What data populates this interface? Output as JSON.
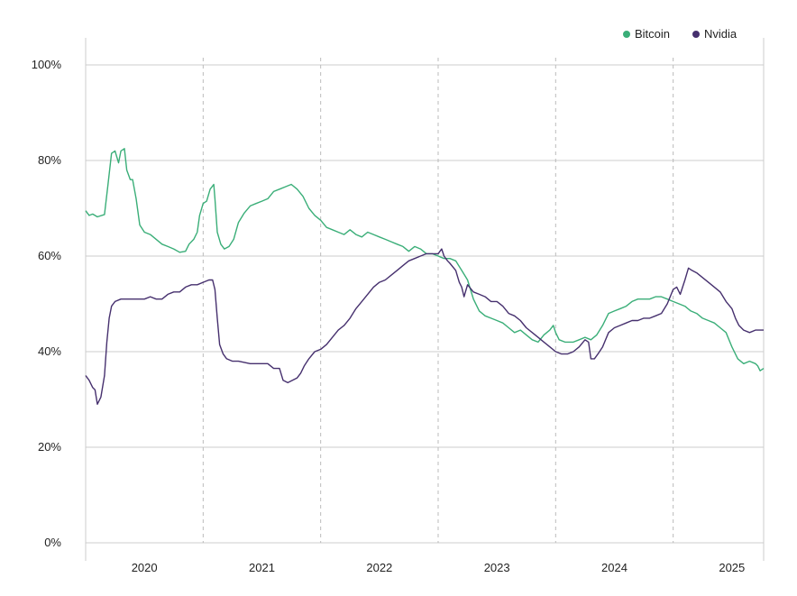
{
  "colors": {
    "bitcoin": "#3aae78",
    "nvidia": "#46306e",
    "grid": "#cccccc",
    "divider": "#bbbbbb"
  },
  "legend": {
    "position": "top-right"
  },
  "chart_data": {
    "type": "line",
    "title": "",
    "xlabel": "",
    "ylabel": "",
    "xlim": [
      2019.5,
      2025.27
    ],
    "ylim": [
      0,
      100
    ],
    "x_ticks": [
      {
        "label": "2020",
        "pos": 2020.0
      },
      {
        "label": "2021",
        "pos": 2021.0
      },
      {
        "label": "2022",
        "pos": 2022.0
      },
      {
        "label": "2023",
        "pos": 2023.0
      },
      {
        "label": "2024",
        "pos": 2024.0
      },
      {
        "label": "2025",
        "pos": 2025.0
      }
    ],
    "year_dividers": [
      2020.5,
      2021.5,
      2022.5,
      2023.5,
      2024.5
    ],
    "y_ticks": [
      {
        "label": "0%",
        "value": 0
      },
      {
        "label": "20%",
        "value": 20
      },
      {
        "label": "40%",
        "value": 40
      },
      {
        "label": "60%",
        "value": 60
      },
      {
        "label": "80%",
        "value": 80
      },
      {
        "label": "100%",
        "value": 100
      }
    ],
    "grid": true,
    "series": [
      {
        "name": "Bitcoin",
        "color": "#3aae78",
        "points": [
          [
            2019.5,
            69.5
          ],
          [
            2019.53,
            68.5
          ],
          [
            2019.56,
            68.8
          ],
          [
            2019.6,
            68.2
          ],
          [
            2019.66,
            68.7
          ],
          [
            2019.69,
            75.0
          ],
          [
            2019.72,
            81.5
          ],
          [
            2019.75,
            82.0
          ],
          [
            2019.78,
            79.5
          ],
          [
            2019.8,
            82.0
          ],
          [
            2019.83,
            82.5
          ],
          [
            2019.85,
            78.0
          ],
          [
            2019.88,
            76.0
          ],
          [
            2019.9,
            76.0
          ],
          [
            2019.93,
            72.0
          ],
          [
            2019.96,
            66.5
          ],
          [
            2020.0,
            65.0
          ],
          [
            2020.05,
            64.5
          ],
          [
            2020.1,
            63.5
          ],
          [
            2020.15,
            62.5
          ],
          [
            2020.2,
            62.0
          ],
          [
            2020.25,
            61.5
          ],
          [
            2020.3,
            60.8
          ],
          [
            2020.35,
            61.0
          ],
          [
            2020.38,
            62.5
          ],
          [
            2020.42,
            63.5
          ],
          [
            2020.45,
            65.0
          ],
          [
            2020.47,
            68.5
          ],
          [
            2020.5,
            71.0
          ],
          [
            2020.53,
            71.5
          ],
          [
            2020.56,
            74.0
          ],
          [
            2020.59,
            75.0
          ],
          [
            2020.6,
            72.0
          ],
          [
            2020.62,
            65.0
          ],
          [
            2020.65,
            62.5
          ],
          [
            2020.68,
            61.5
          ],
          [
            2020.72,
            62.0
          ],
          [
            2020.76,
            63.5
          ],
          [
            2020.8,
            67.0
          ],
          [
            2020.85,
            69.0
          ],
          [
            2020.9,
            70.5
          ],
          [
            2020.95,
            71.0
          ],
          [
            2021.0,
            71.5
          ],
          [
            2021.05,
            72.0
          ],
          [
            2021.1,
            73.5
          ],
          [
            2021.15,
            74.0
          ],
          [
            2021.2,
            74.5
          ],
          [
            2021.25,
            75.0
          ],
          [
            2021.3,
            74.0
          ],
          [
            2021.35,
            72.5
          ],
          [
            2021.4,
            70.0
          ],
          [
            2021.45,
            68.5
          ],
          [
            2021.5,
            67.5
          ],
          [
            2021.55,
            66.0
          ],
          [
            2021.6,
            65.5
          ],
          [
            2021.65,
            65.0
          ],
          [
            2021.7,
            64.5
          ],
          [
            2021.75,
            65.5
          ],
          [
            2021.8,
            64.5
          ],
          [
            2021.85,
            64.0
          ],
          [
            2021.9,
            65.0
          ],
          [
            2021.95,
            64.5
          ],
          [
            2022.0,
            64.0
          ],
          [
            2022.05,
            63.5
          ],
          [
            2022.1,
            63.0
          ],
          [
            2022.15,
            62.5
          ],
          [
            2022.2,
            62.0
          ],
          [
            2022.25,
            61.0
          ],
          [
            2022.3,
            62.0
          ],
          [
            2022.35,
            61.5
          ],
          [
            2022.4,
            60.5
          ],
          [
            2022.45,
            60.5
          ],
          [
            2022.5,
            60.0
          ],
          [
            2022.55,
            59.5
          ],
          [
            2022.6,
            59.5
          ],
          [
            2022.65,
            59.0
          ],
          [
            2022.7,
            57.0
          ],
          [
            2022.75,
            55.0
          ],
          [
            2022.8,
            51.0
          ],
          [
            2022.85,
            48.5
          ],
          [
            2022.9,
            47.5
          ],
          [
            2022.95,
            47.0
          ],
          [
            2023.0,
            46.5
          ],
          [
            2023.05,
            46.0
          ],
          [
            2023.1,
            45.0
          ],
          [
            2023.15,
            44.0
          ],
          [
            2023.2,
            44.5
          ],
          [
            2023.25,
            43.5
          ],
          [
            2023.3,
            42.5
          ],
          [
            2023.35,
            42.0
          ],
          [
            2023.4,
            43.5
          ],
          [
            2023.45,
            44.5
          ],
          [
            2023.48,
            45.5
          ],
          [
            2023.5,
            44.0
          ],
          [
            2023.53,
            42.5
          ],
          [
            2023.58,
            42.0
          ],
          [
            2023.65,
            42.0
          ],
          [
            2023.7,
            42.5
          ],
          [
            2023.75,
            43.0
          ],
          [
            2023.8,
            42.5
          ],
          [
            2023.85,
            43.5
          ],
          [
            2023.9,
            45.5
          ],
          [
            2023.95,
            48.0
          ],
          [
            2024.0,
            48.5
          ],
          [
            2024.05,
            49.0
          ],
          [
            2024.1,
            49.5
          ],
          [
            2024.15,
            50.5
          ],
          [
            2024.2,
            51.0
          ],
          [
            2024.25,
            51.0
          ],
          [
            2024.3,
            51.0
          ],
          [
            2024.35,
            51.5
          ],
          [
            2024.4,
            51.5
          ],
          [
            2024.45,
            51.0
          ],
          [
            2024.5,
            50.5
          ],
          [
            2024.55,
            50.0
          ],
          [
            2024.6,
            49.5
          ],
          [
            2024.65,
            48.5
          ],
          [
            2024.7,
            48.0
          ],
          [
            2024.75,
            47.0
          ],
          [
            2024.8,
            46.5
          ],
          [
            2024.85,
            46.0
          ],
          [
            2024.9,
            45.0
          ],
          [
            2024.95,
            44.0
          ],
          [
            2025.0,
            41.0
          ],
          [
            2025.05,
            38.5
          ],
          [
            2025.1,
            37.5
          ],
          [
            2025.15,
            38.0
          ],
          [
            2025.2,
            37.5
          ],
          [
            2025.22,
            37.0
          ],
          [
            2025.24,
            36.0
          ],
          [
            2025.27,
            36.5
          ]
        ]
      },
      {
        "name": "Nvidia",
        "color": "#46306e",
        "points": [
          [
            2019.5,
            35.0
          ],
          [
            2019.53,
            34.0
          ],
          [
            2019.56,
            32.5
          ],
          [
            2019.58,
            32.0
          ],
          [
            2019.6,
            29.0
          ],
          [
            2019.63,
            30.5
          ],
          [
            2019.66,
            35.0
          ],
          [
            2019.68,
            42.0
          ],
          [
            2019.7,
            47.0
          ],
          [
            2019.72,
            49.5
          ],
          [
            2019.75,
            50.5
          ],
          [
            2019.8,
            51.0
          ],
          [
            2019.9,
            51.0
          ],
          [
            2020.0,
            51.0
          ],
          [
            2020.05,
            51.5
          ],
          [
            2020.1,
            51.0
          ],
          [
            2020.15,
            51.0
          ],
          [
            2020.2,
            52.0
          ],
          [
            2020.25,
            52.5
          ],
          [
            2020.3,
            52.5
          ],
          [
            2020.35,
            53.5
          ],
          [
            2020.4,
            54.0
          ],
          [
            2020.45,
            54.0
          ],
          [
            2020.5,
            54.5
          ],
          [
            2020.55,
            55.0
          ],
          [
            2020.58,
            55.0
          ],
          [
            2020.6,
            53.0
          ],
          [
            2020.62,
            47.0
          ],
          [
            2020.64,
            41.5
          ],
          [
            2020.67,
            39.5
          ],
          [
            2020.7,
            38.5
          ],
          [
            2020.75,
            38.0
          ],
          [
            2020.8,
            38.0
          ],
          [
            2020.9,
            37.5
          ],
          [
            2021.0,
            37.5
          ],
          [
            2021.05,
            37.5
          ],
          [
            2021.1,
            36.5
          ],
          [
            2021.15,
            36.5
          ],
          [
            2021.18,
            34.0
          ],
          [
            2021.22,
            33.5
          ],
          [
            2021.26,
            34.0
          ],
          [
            2021.3,
            34.5
          ],
          [
            2021.33,
            35.5
          ],
          [
            2021.36,
            37.0
          ],
          [
            2021.4,
            38.5
          ],
          [
            2021.45,
            40.0
          ],
          [
            2021.5,
            40.5
          ],
          [
            2021.55,
            41.5
          ],
          [
            2021.6,
            43.0
          ],
          [
            2021.65,
            44.5
          ],
          [
            2021.7,
            45.5
          ],
          [
            2021.75,
            47.0
          ],
          [
            2021.8,
            49.0
          ],
          [
            2021.85,
            50.5
          ],
          [
            2021.9,
            52.0
          ],
          [
            2021.95,
            53.5
          ],
          [
            2022.0,
            54.5
          ],
          [
            2022.05,
            55.0
          ],
          [
            2022.1,
            56.0
          ],
          [
            2022.15,
            57.0
          ],
          [
            2022.2,
            58.0
          ],
          [
            2022.25,
            59.0
          ],
          [
            2022.3,
            59.5
          ],
          [
            2022.35,
            60.0
          ],
          [
            2022.4,
            60.5
          ],
          [
            2022.45,
            60.5
          ],
          [
            2022.5,
            60.5
          ],
          [
            2022.53,
            61.5
          ],
          [
            2022.55,
            60.0
          ],
          [
            2022.58,
            59.0
          ],
          [
            2022.6,
            58.5
          ],
          [
            2022.65,
            57.0
          ],
          [
            2022.68,
            54.5
          ],
          [
            2022.7,
            53.5
          ],
          [
            2022.72,
            51.5
          ],
          [
            2022.75,
            54.0
          ],
          [
            2022.8,
            52.5
          ],
          [
            2022.85,
            52.0
          ],
          [
            2022.9,
            51.5
          ],
          [
            2022.95,
            50.5
          ],
          [
            2023.0,
            50.5
          ],
          [
            2023.05,
            49.5
          ],
          [
            2023.1,
            48.0
          ],
          [
            2023.15,
            47.5
          ],
          [
            2023.2,
            46.5
          ],
          [
            2023.25,
            45.0
          ],
          [
            2023.3,
            44.0
          ],
          [
            2023.35,
            43.0
          ],
          [
            2023.4,
            42.0
          ],
          [
            2023.45,
            41.0
          ],
          [
            2023.5,
            40.0
          ],
          [
            2023.55,
            39.5
          ],
          [
            2023.6,
            39.5
          ],
          [
            2023.65,
            40.0
          ],
          [
            2023.7,
            41.0
          ],
          [
            2023.75,
            42.5
          ],
          [
            2023.78,
            42.0
          ],
          [
            2023.8,
            38.5
          ],
          [
            2023.83,
            38.5
          ],
          [
            2023.86,
            39.5
          ],
          [
            2023.9,
            41.0
          ],
          [
            2023.95,
            44.0
          ],
          [
            2024.0,
            45.0
          ],
          [
            2024.05,
            45.5
          ],
          [
            2024.1,
            46.0
          ],
          [
            2024.15,
            46.5
          ],
          [
            2024.2,
            46.5
          ],
          [
            2024.25,
            47.0
          ],
          [
            2024.3,
            47.0
          ],
          [
            2024.35,
            47.5
          ],
          [
            2024.4,
            48.0
          ],
          [
            2024.45,
            50.0
          ],
          [
            2024.5,
            53.0
          ],
          [
            2024.53,
            53.5
          ],
          [
            2024.56,
            52.0
          ],
          [
            2024.6,
            55.0
          ],
          [
            2024.63,
            57.5
          ],
          [
            2024.66,
            57.0
          ],
          [
            2024.7,
            56.5
          ],
          [
            2024.75,
            55.5
          ],
          [
            2024.8,
            54.5
          ],
          [
            2024.85,
            53.5
          ],
          [
            2024.9,
            52.5
          ],
          [
            2024.95,
            50.5
          ],
          [
            2025.0,
            49.0
          ],
          [
            2025.03,
            47.0
          ],
          [
            2025.06,
            45.5
          ],
          [
            2025.1,
            44.5
          ],
          [
            2025.15,
            44.0
          ],
          [
            2025.2,
            44.5
          ],
          [
            2025.25,
            44.5
          ],
          [
            2025.27,
            44.5
          ]
        ]
      }
    ]
  }
}
